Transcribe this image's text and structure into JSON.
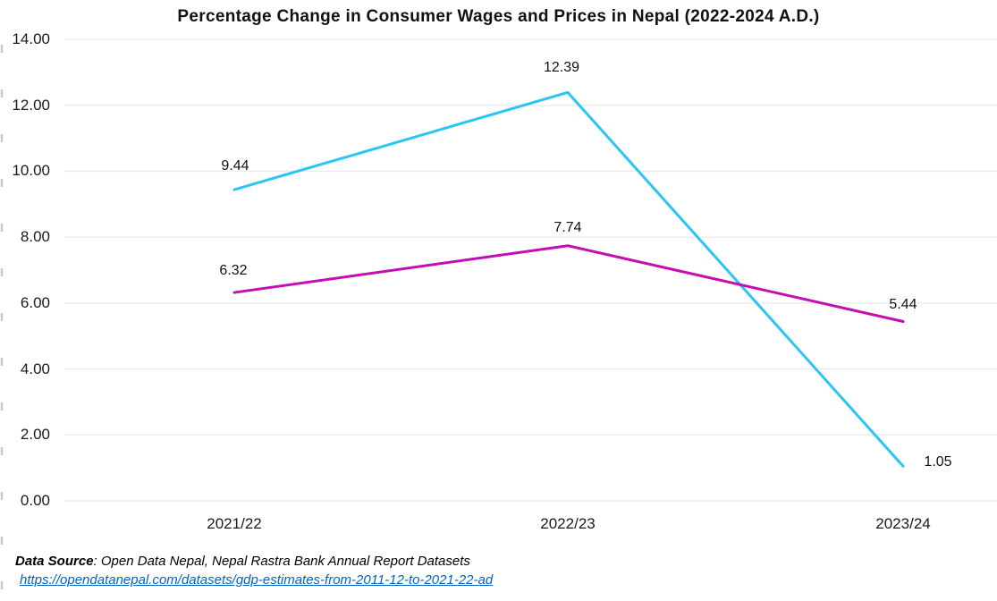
{
  "title": "Percentage Change in Consumer Wages and Prices in Nepal (2022-2024 A.D.)",
  "chart_data": {
    "type": "line",
    "categories": [
      "2021/22",
      "2022/23",
      "2023/24"
    ],
    "series": [
      {
        "name": "series-cyan",
        "values": [
          9.44,
          12.39,
          1.05
        ],
        "labels": [
          "9.44",
          "12.39",
          "1.05"
        ],
        "color": "#29C5F4"
      },
      {
        "name": "series-magenta",
        "values": [
          6.32,
          7.74,
          5.44
        ],
        "labels": [
          "6.32",
          "7.74",
          "5.44"
        ],
        "color": "#C50DB4"
      }
    ],
    "ylim": [
      0,
      14
    ],
    "ytick_step": 2,
    "ytick_labels": [
      "14.00",
      "12.00",
      "10.00",
      "8.00",
      "6.00",
      "4.00",
      "2.00",
      "0.00"
    ],
    "grid": "horizontal",
    "legend": "none"
  },
  "footer": {
    "source_label": "Data Source",
    "source_text": ": Open Data Nepal,  Nepal Rastra Bank Annual Report Datasets",
    "link": "https://opendatanepal.com/datasets/gdp-estimates-from-2011-12-to-2021-22-ad"
  },
  "colors": {
    "link": "#0563C1",
    "grid": "#ECECEC",
    "axis_dash": "#C9C9C9",
    "text": "#1A1A1A"
  }
}
